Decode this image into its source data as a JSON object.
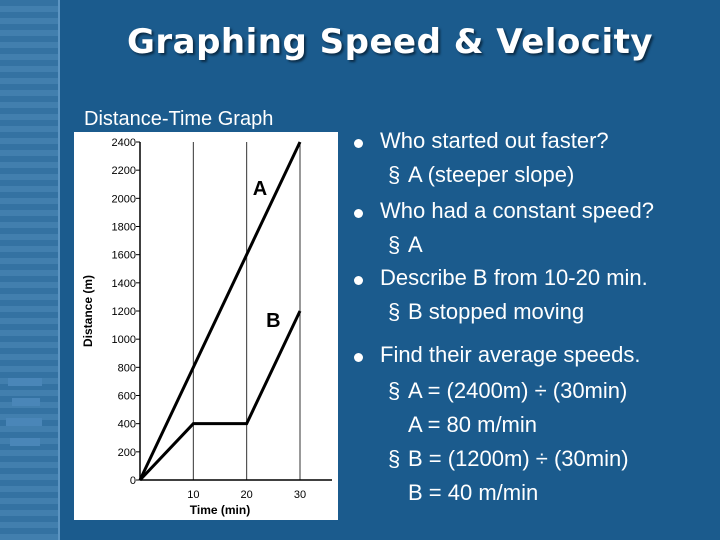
{
  "title": "Graphing Speed & Velocity",
  "graph_label": "Distance-Time Graph",
  "bullets": [
    {
      "text": "Who started out faster?",
      "subs": [
        "A (steeper slope)"
      ]
    },
    {
      "text": "Who had a constant speed?",
      "subs": [
        "A"
      ]
    },
    {
      "text": "Describe B from 10-20 min.",
      "subs": [
        "B stopped moving"
      ]
    },
    {
      "text": "Find their average speeds.",
      "subs": [
        "A = (2400m) ÷ (30min)",
        "A = 80 m/min",
        "B = (1200m) ÷ (30min)",
        "B = 40 m/min"
      ]
    }
  ],
  "sub_marker": "§",
  "colors": {
    "background": "#1b5b8d",
    "text": "#ffffff",
    "chart_line": "#000000"
  },
  "chart_data": {
    "type": "line",
    "title": "",
    "xlabel": "Time (min)",
    "ylabel": "Distance (m)",
    "xlim": [
      0,
      36
    ],
    "ylim": [
      0,
      2400
    ],
    "x_ticks": [
      10,
      20,
      30
    ],
    "y_ticks": [
      0,
      200,
      400,
      600,
      800,
      1000,
      1200,
      1400,
      1600,
      1800,
      2000,
      2200,
      2400
    ],
    "grid": "vertical",
    "series": [
      {
        "name": "A",
        "x": [
          0,
          30
        ],
        "y": [
          0,
          2400
        ]
      },
      {
        "name": "B",
        "x": [
          0,
          10,
          20,
          30
        ],
        "y": [
          0,
          400,
          400,
          1200
        ]
      }
    ]
  }
}
